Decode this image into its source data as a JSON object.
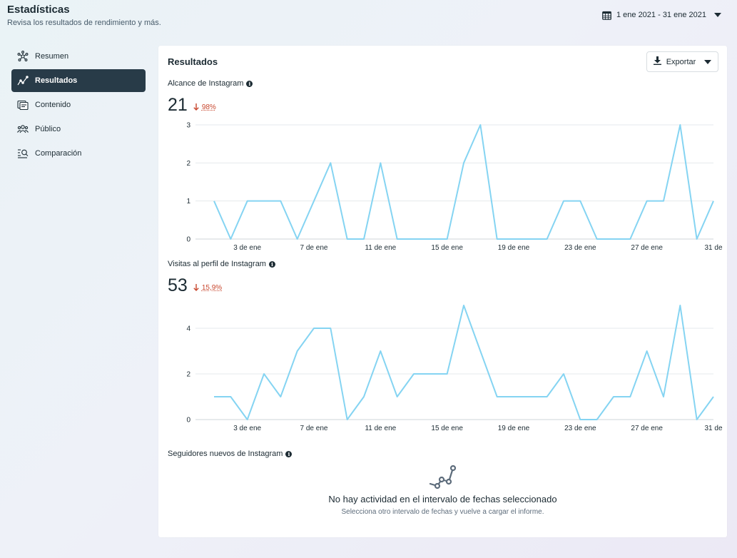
{
  "header": {
    "title": "Estadísticas",
    "subtitle": "Revisa los resultados de rendimiento y más.",
    "date_range": "1 ene 2021 - 31 ene 2021"
  },
  "sidebar": {
    "items": [
      {
        "label": "Resumen",
        "icon": "network-icon",
        "active": false
      },
      {
        "label": "Resultados",
        "icon": "trend-icon",
        "active": true
      },
      {
        "label": "Contenido",
        "icon": "content-icon",
        "active": false
      },
      {
        "label": "Público",
        "icon": "audience-icon",
        "active": false
      },
      {
        "label": "Comparación",
        "icon": "compare-icon",
        "active": false
      }
    ]
  },
  "main": {
    "title": "Resultados",
    "export_label": "Exportar",
    "reach": {
      "label": "Alcance de Instagram",
      "value": "21",
      "change": "98%"
    },
    "profile_visits": {
      "label": "Visitas al perfil de Instagram",
      "value": "53",
      "change": "15,9%"
    },
    "followers": {
      "label": "Seguidores nuevos de Instagram",
      "empty_title": "No hay actividad en el intervalo de fechas seleccionado",
      "empty_subtitle": "Selecciona otro intervalo de fechas y vuelve a cargar el informe."
    }
  },
  "colors": {
    "line": "#85d4f2",
    "accent_dark": "#283b48",
    "negative": "#c8472e"
  },
  "chart_data": [
    {
      "type": "line",
      "x": [
        1,
        2,
        3,
        4,
        5,
        6,
        7,
        8,
        9,
        10,
        11,
        12,
        13,
        14,
        15,
        16,
        17,
        18,
        19,
        20,
        21,
        22,
        23,
        24,
        25,
        26,
        27,
        28,
        29,
        30,
        31
      ],
      "x_tick_labels": [
        "3 de ene",
        "7 de ene",
        "11 de ene",
        "15 de ene",
        "19 de ene",
        "23 de ene",
        "27 de ene",
        "31 de"
      ],
      "x_tick_days": [
        3,
        7,
        11,
        15,
        19,
        23,
        27,
        31
      ],
      "values": [
        1,
        0,
        1,
        1,
        1,
        0,
        1,
        2,
        0,
        0,
        2,
        0,
        0,
        0,
        0,
        2,
        3,
        0,
        0,
        0,
        0,
        1,
        1,
        0,
        0,
        0,
        1,
        1,
        3,
        0,
        1
      ],
      "yticks": [
        0,
        1,
        2,
        3
      ],
      "ylim": [
        0,
        3
      ],
      "grid": true
    },
    {
      "type": "line",
      "x": [
        1,
        2,
        3,
        4,
        5,
        6,
        7,
        8,
        9,
        10,
        11,
        12,
        13,
        14,
        15,
        16,
        17,
        18,
        19,
        20,
        21,
        22,
        23,
        24,
        25,
        26,
        27,
        28,
        29,
        30,
        31
      ],
      "x_tick_labels": [
        "3 de ene",
        "7 de ene",
        "11 de ene",
        "15 de ene",
        "19 de ene",
        "23 de ene",
        "27 de ene",
        "31 de"
      ],
      "x_tick_days": [
        3,
        7,
        11,
        15,
        19,
        23,
        27,
        31
      ],
      "values": [
        1,
        1,
        0,
        2,
        1,
        3,
        4,
        4,
        0,
        1,
        3,
        1,
        2,
        2,
        2,
        5,
        3,
        1,
        1,
        1,
        1,
        2,
        0,
        0,
        1,
        1,
        3,
        1,
        5,
        0,
        1
      ],
      "yticks": [
        0,
        2,
        4
      ],
      "ylim": [
        0,
        5
      ],
      "grid": true
    }
  ]
}
